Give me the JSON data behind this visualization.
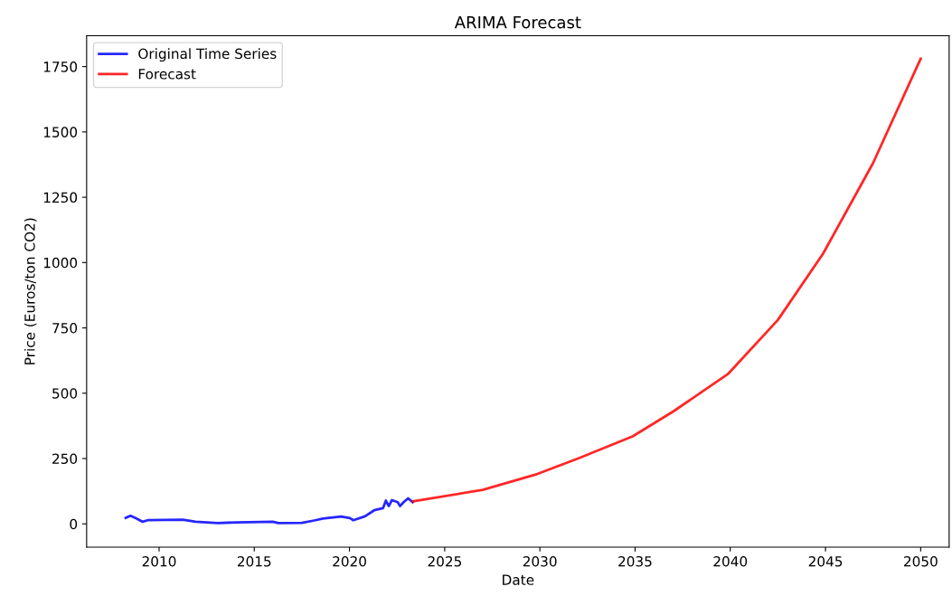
{
  "chart_data": {
    "type": "line",
    "title": "ARIMA Forecast",
    "xlabel": "Date",
    "ylabel": "Price (Euros/ton CO2)",
    "series": [
      {
        "name": "Original Time Series",
        "color": "#0000ff",
        "x": [
          "2008-04-01",
          "2008-07-01",
          "2008-11-01",
          "2009-02-20",
          "2009-05-25",
          "2011-04-01",
          "2011-12-01",
          "2013-02-05",
          "2014-02-01",
          "2015-12-20",
          "2016-04-10",
          "2017-07-01",
          "2018-02-25",
          "2018-08-10",
          "2019-07-25",
          "2020-01-10",
          "2020-03-15",
          "2020-10-25",
          "2021-04-20",
          "2021-10-05",
          "2021-11-30",
          "2022-01-25",
          "2022-03-25",
          "2022-07-15",
          "2022-08-28",
          "2022-11-05",
          "2023-01-30",
          "2023-04-28"
        ],
        "values": [
          23,
          31,
          20,
          8,
          14,
          16,
          8,
          3,
          6,
          8,
          3,
          4,
          13,
          20,
          28,
          22,
          14,
          29,
          52,
          60,
          89,
          68,
          91,
          83,
          68,
          83,
          98,
          83
        ]
      },
      {
        "name": "Forecast",
        "color": "#ff0000",
        "x": [
          "2023-04-28",
          "2027-01-01",
          "2029-11-15",
          "2032-01-01",
          "2034-11-15",
          "2037-01-01",
          "2039-11-15",
          "2042-07-01",
          "2044-11-15",
          "2047-07-01",
          "2050-01-01"
        ],
        "values": [
          86,
          130,
          191,
          250,
          335,
          430,
          573,
          780,
          1034,
          1380,
          1780
        ]
      }
    ],
    "xlim": [
      "2006-03-13",
      "2051-07-01"
    ],
    "xticks": [
      "2010",
      "2015",
      "2020",
      "2025",
      "2030",
      "2035",
      "2040",
      "2045",
      "2050"
    ],
    "ylim": [
      -89,
      1868
    ],
    "yticks": [
      0,
      250,
      500,
      750,
      1000,
      1250,
      1500,
      1750
    ],
    "legend": "top left",
    "grid": false
  }
}
